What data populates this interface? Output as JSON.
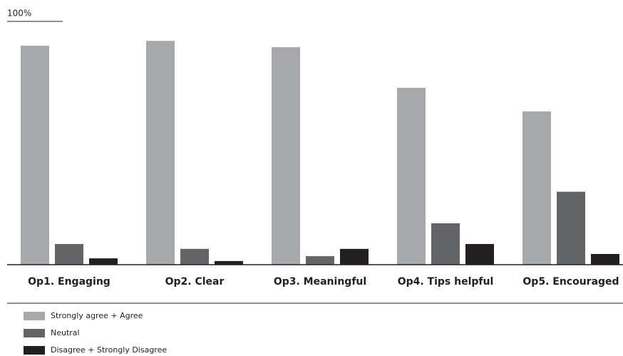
{
  "chart_data": {
    "type": "bar",
    "categories": [
      "Op1. Engaging",
      "Op2. Clear",
      "Op3. Meaningful",
      "Op4. Tips helpful",
      "Op5. Encouraged"
    ],
    "series": [
      {
        "name": "Strongly agree + Agree",
        "color": "#a7a8aa",
        "values": [
          90,
          92,
          89.4,
          72.7,
          63
        ]
      },
      {
        "name": "Neutral",
        "color": "#636466",
        "values": [
          8.5,
          6.5,
          3.5,
          17,
          30
        ]
      },
      {
        "name": "Disagree + Strongly Disagree",
        "color": "#231f20",
        "values": [
          2.6,
          1.5,
          6.5,
          8.5,
          4.4
        ]
      }
    ],
    "ylim": [
      0,
      100
    ],
    "yticks": [
      {
        "value": 100,
        "label": "100%"
      }
    ],
    "legend": "bottom-left"
  }
}
